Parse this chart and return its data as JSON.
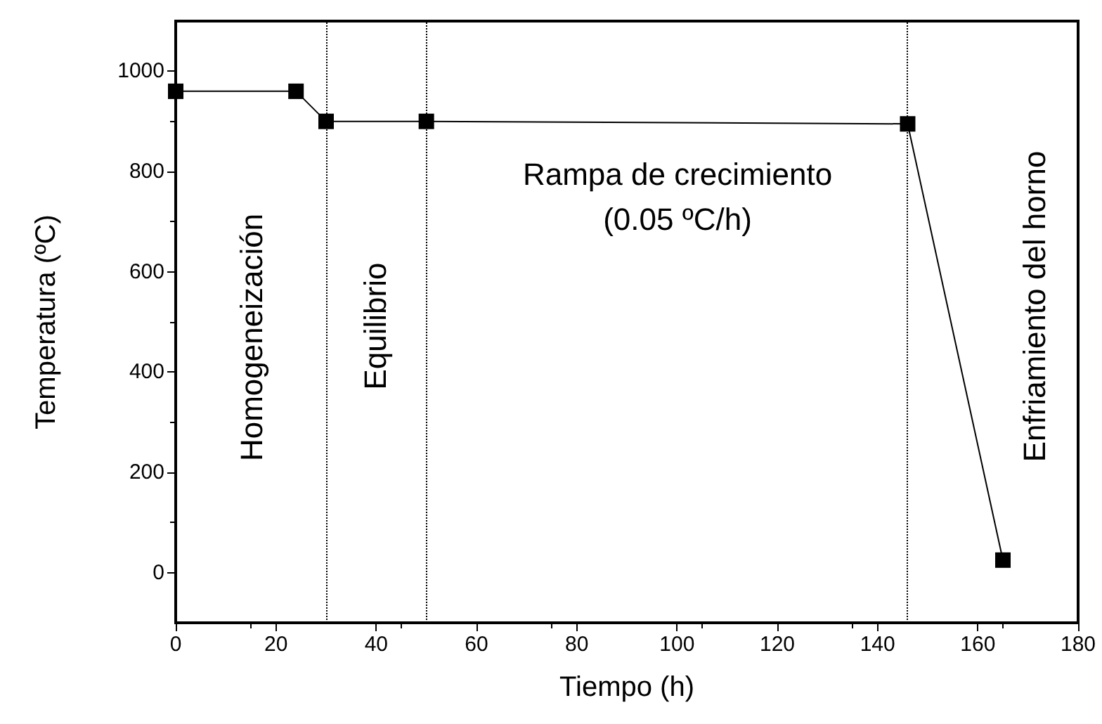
{
  "chart_data": {
    "type": "line",
    "xlabel": "Tiempo (h)",
    "ylabel": "Temperatura (ºC)",
    "x": [
      0,
      24,
      30,
      50,
      146,
      165
    ],
    "series": [
      {
        "color": "#000000",
        "values": [
          960,
          960,
          900,
          900,
          895,
          25
        ]
      }
    ],
    "xlim": [
      0,
      180
    ],
    "xticks": [
      0,
      20,
      40,
      60,
      80,
      100,
      120,
      140,
      160,
      180
    ],
    "ylim": [
      -100,
      1100
    ],
    "yticks": [
      0,
      200,
      400,
      600,
      800,
      1000
    ],
    "marker": "square",
    "line_style": "solid",
    "ref_lines": [
      {
        "axis": "x",
        "value": 30,
        "color": "#000000",
        "line_style": "dotted"
      },
      {
        "axis": "x",
        "value": 50,
        "color": "#000000",
        "line_style": "dotted"
      },
      {
        "axis": "x",
        "value": 146,
        "color": "#000000",
        "line_style": "dotted"
      }
    ],
    "annotations": [
      "Homogeneización",
      "Equilibrio",
      "Rampa de crecimiento\n(0.05 ºC/h)",
      "Enfriamiento del horno"
    ]
  }
}
